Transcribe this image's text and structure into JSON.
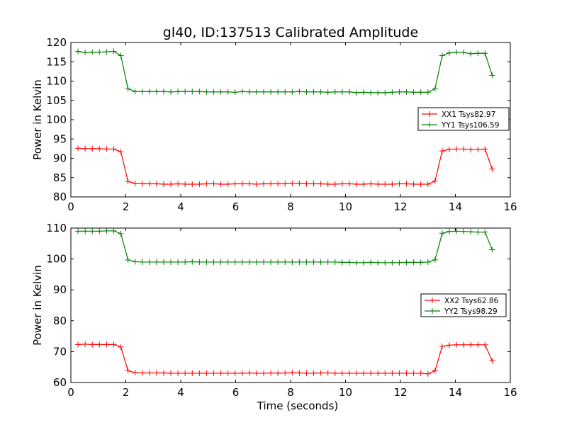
{
  "figure": {
    "title": "gl40, ID:137513 Calibrated Amplitude"
  },
  "colors": {
    "xx": "#ff0000",
    "yy": "#008000",
    "axes": "#000000"
  },
  "chart_data": [
    {
      "type": "line",
      "title": "gl40, ID:137513 Calibrated Amplitude",
      "xlabel": "",
      "ylabel": "Power in Kelvin",
      "xlim": [
        0,
        16
      ],
      "ylim": [
        80,
        120
      ],
      "xticks": [
        0,
        2,
        4,
        6,
        8,
        10,
        12,
        14,
        16
      ],
      "yticks": [
        80,
        85,
        90,
        95,
        100,
        105,
        110,
        115,
        120
      ],
      "grid": false,
      "legend_position": "center-right",
      "x": [
        0.26,
        0.52,
        0.78,
        1.04,
        1.3,
        1.56,
        1.82,
        2.08,
        2.34,
        2.6,
        2.86,
        3.12,
        3.38,
        3.64,
        3.9,
        4.16,
        4.42,
        4.68,
        4.94,
        5.2,
        5.46,
        5.72,
        5.98,
        6.24,
        6.5,
        6.76,
        7.02,
        7.28,
        7.54,
        7.8,
        8.06,
        8.32,
        8.58,
        8.84,
        9.1,
        9.36,
        9.62,
        9.88,
        10.14,
        10.4,
        10.66,
        10.92,
        11.18,
        11.44,
        11.7,
        11.96,
        12.22,
        12.48,
        12.74,
        13.0,
        13.26,
        13.52,
        13.78,
        14.04,
        14.3,
        14.56,
        14.82,
        15.08,
        15.34
      ],
      "series": [
        {
          "name": "XX1 Tsys82.97",
          "color": "#ff0000",
          "values": [
            92.6,
            92.5,
            92.5,
            92.5,
            92.4,
            92.4,
            91.7,
            84.0,
            83.5,
            83.4,
            83.4,
            83.4,
            83.3,
            83.3,
            83.4,
            83.3,
            83.3,
            83.3,
            83.4,
            83.4,
            83.3,
            83.3,
            83.4,
            83.4,
            83.4,
            83.3,
            83.4,
            83.4,
            83.4,
            83.4,
            83.5,
            83.5,
            83.4,
            83.4,
            83.4,
            83.3,
            83.3,
            83.4,
            83.4,
            83.3,
            83.3,
            83.4,
            83.3,
            83.3,
            83.3,
            83.4,
            83.4,
            83.3,
            83.3,
            83.3,
            84.1,
            91.9,
            92.3,
            92.4,
            92.4,
            92.3,
            92.3,
            92.4,
            87.2
          ]
        },
        {
          "name": "YY1 Tsys106.59",
          "color": "#008000",
          "values": [
            117.7,
            117.4,
            117.5,
            117.5,
            117.6,
            117.7,
            116.6,
            108.0,
            107.3,
            107.3,
            107.3,
            107.3,
            107.3,
            107.2,
            107.3,
            107.3,
            107.3,
            107.3,
            107.2,
            107.2,
            107.2,
            107.2,
            107.1,
            107.3,
            107.2,
            107.2,
            107.2,
            107.2,
            107.2,
            107.2,
            107.2,
            107.3,
            107.2,
            107.2,
            107.2,
            107.1,
            107.2,
            107.2,
            107.2,
            107.0,
            107.1,
            107.0,
            107.0,
            107.0,
            107.1,
            107.2,
            107.2,
            107.1,
            107.1,
            107.1,
            108.0,
            116.6,
            117.3,
            117.5,
            117.4,
            117.1,
            117.2,
            117.2,
            111.5
          ]
        }
      ]
    },
    {
      "type": "line",
      "title": "",
      "xlabel": "Time (seconds)",
      "ylabel": "Power in Kelvin",
      "xlim": [
        0,
        16
      ],
      "ylim": [
        60,
        110
      ],
      "xticks": [
        0,
        2,
        4,
        6,
        8,
        10,
        12,
        14,
        16
      ],
      "yticks": [
        60,
        70,
        80,
        90,
        100,
        110
      ],
      "grid": false,
      "legend_position": "center-right",
      "x": [
        0.26,
        0.52,
        0.78,
        1.04,
        1.3,
        1.56,
        1.82,
        2.08,
        2.34,
        2.6,
        2.86,
        3.12,
        3.38,
        3.64,
        3.9,
        4.16,
        4.42,
        4.68,
        4.94,
        5.2,
        5.46,
        5.72,
        5.98,
        6.24,
        6.5,
        6.76,
        7.02,
        7.28,
        7.54,
        7.8,
        8.06,
        8.32,
        8.58,
        8.84,
        9.1,
        9.36,
        9.62,
        9.88,
        10.14,
        10.4,
        10.66,
        10.92,
        11.18,
        11.44,
        11.7,
        11.96,
        12.22,
        12.48,
        12.74,
        13.0,
        13.26,
        13.52,
        13.78,
        14.04,
        14.3,
        14.56,
        14.82,
        15.08,
        15.34
      ],
      "series": [
        {
          "name": "XX2 Tsys62.86",
          "color": "#ff0000",
          "values": [
            72.3,
            72.4,
            72.3,
            72.3,
            72.3,
            72.3,
            71.5,
            63.8,
            63.2,
            63.1,
            63.1,
            63.1,
            63.1,
            63.0,
            63.0,
            63.0,
            63.0,
            63.0,
            63.0,
            63.0,
            63.0,
            63.0,
            63.0,
            63.0,
            63.1,
            63.0,
            63.0,
            63.1,
            63.0,
            63.1,
            63.2,
            63.1,
            63.0,
            63.0,
            63.1,
            63.1,
            63.0,
            63.0,
            63.0,
            63.0,
            63.0,
            63.0,
            63.0,
            63.0,
            63.0,
            63.0,
            63.0,
            63.0,
            63.0,
            62.8,
            63.8,
            71.7,
            72.1,
            72.2,
            72.2,
            72.2,
            72.2,
            72.2,
            67.0
          ]
        },
        {
          "name": "YY2 Tsys98.29",
          "color": "#008000",
          "values": [
            109.0,
            109.0,
            109.0,
            109.0,
            109.1,
            109.1,
            108.2,
            99.7,
            99.1,
            99.0,
            99.0,
            99.0,
            99.0,
            99.0,
            99.0,
            99.0,
            99.1,
            99.0,
            99.0,
            99.0,
            99.0,
            99.0,
            99.0,
            99.0,
            99.0,
            99.0,
            99.0,
            99.0,
            99.0,
            99.0,
            99.0,
            99.0,
            99.0,
            99.0,
            99.0,
            99.0,
            99.0,
            98.9,
            98.9,
            98.8,
            98.8,
            98.9,
            98.8,
            98.8,
            98.8,
            98.8,
            98.9,
            98.9,
            98.9,
            99.0,
            99.7,
            108.3,
            108.9,
            109.0,
            108.9,
            108.8,
            108.7,
            108.7,
            103.0
          ]
        }
      ]
    }
  ]
}
